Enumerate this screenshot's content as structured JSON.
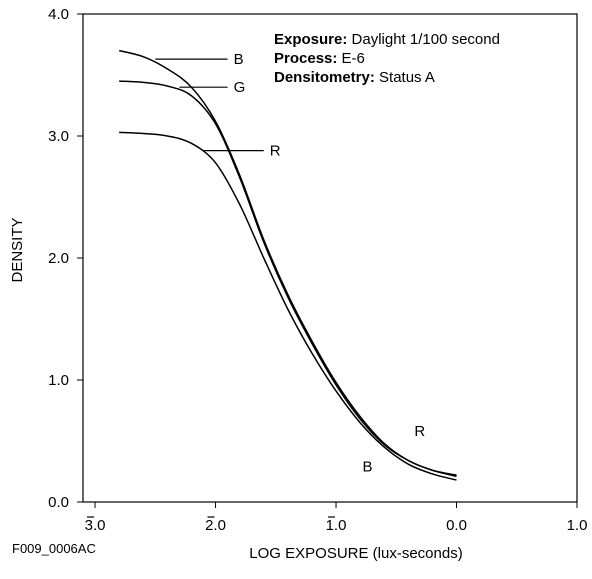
{
  "chart_data": {
    "type": "line",
    "xlabel": "LOG EXPOSURE (lux-seconds)",
    "ylabel": "DENSITY",
    "xlim": [
      -3.1,
      1.0
    ],
    "ylim": [
      0.0,
      4.0
    ],
    "x_ticks": [
      {
        "value": -3.0,
        "label": "3.0",
        "bar": true
      },
      {
        "value": -2.0,
        "label": "2.0",
        "bar": true
      },
      {
        "value": -1.0,
        "label": "1.0",
        "bar": true
      },
      {
        "value": 0.0,
        "label": "0.0",
        "bar": false
      },
      {
        "value": 1.0,
        "label": "1.0",
        "bar": false
      }
    ],
    "y_ticks": [
      {
        "value": 0.0,
        "label": "0.0"
      },
      {
        "value": 1.0,
        "label": "1.0"
      },
      {
        "value": 2.0,
        "label": "2.0"
      },
      {
        "value": 3.0,
        "label": "3.0"
      },
      {
        "value": 4.0,
        "label": "4.0"
      }
    ],
    "grid": false,
    "series": [
      {
        "name": "B",
        "x": [
          -2.8,
          -2.6,
          -2.4,
          -2.2,
          -2.0,
          -1.8,
          -1.6,
          -1.4,
          -1.2,
          -1.0,
          -0.8,
          -0.6,
          -0.4,
          -0.2,
          0.0
        ],
        "y": [
          3.7,
          3.65,
          3.55,
          3.4,
          3.12,
          2.68,
          2.15,
          1.7,
          1.32,
          0.98,
          0.7,
          0.48,
          0.34,
          0.26,
          0.21
        ]
      },
      {
        "name": "G",
        "x": [
          -2.8,
          -2.6,
          -2.4,
          -2.2,
          -2.0,
          -1.8,
          -1.6,
          -1.4,
          -1.2,
          -1.0,
          -0.8,
          -0.6,
          -0.4,
          -0.2,
          0.0
        ],
        "y": [
          3.45,
          3.44,
          3.41,
          3.33,
          3.1,
          2.66,
          2.13,
          1.68,
          1.3,
          0.96,
          0.68,
          0.47,
          0.34,
          0.26,
          0.22
        ]
      },
      {
        "name": "R",
        "x": [
          -2.8,
          -2.6,
          -2.4,
          -2.2,
          -2.0,
          -1.8,
          -1.6,
          -1.4,
          -1.2,
          -1.0,
          -0.8,
          -0.6,
          -0.4,
          -0.2,
          0.0
        ],
        "y": [
          3.03,
          3.02,
          3.0,
          2.94,
          2.78,
          2.44,
          2.0,
          1.58,
          1.22,
          0.91,
          0.65,
          0.45,
          0.31,
          0.23,
          0.18
        ]
      }
    ],
    "curve_labels": [
      {
        "name": "B",
        "text": "B",
        "anchor": [
          -2.5,
          3.63
        ],
        "end": [
          -1.9,
          3.63
        ]
      },
      {
        "name": "G",
        "text": "G",
        "anchor": [
          -2.3,
          3.4
        ],
        "end": [
          -1.9,
          3.4
        ]
      },
      {
        "name": "R",
        "text": "R",
        "anchor": [
          -2.1,
          2.88
        ],
        "end": [
          -1.6,
          2.88
        ]
      },
      {
        "name": "B",
        "text": "B",
        "anchor": null,
        "end": [
          -0.78,
          0.29
        ]
      },
      {
        "name": "R",
        "text": "R",
        "anchor": null,
        "end": [
          -0.35,
          0.58
        ]
      }
    ],
    "annotations": [
      {
        "label": "Exposure:",
        "value": "Daylight 1/100 second"
      },
      {
        "label": "Process:",
        "value": "E-6"
      },
      {
        "label": "Densitometry:",
        "value": "Status A"
      }
    ]
  },
  "figure_id": "F009_0006AC"
}
